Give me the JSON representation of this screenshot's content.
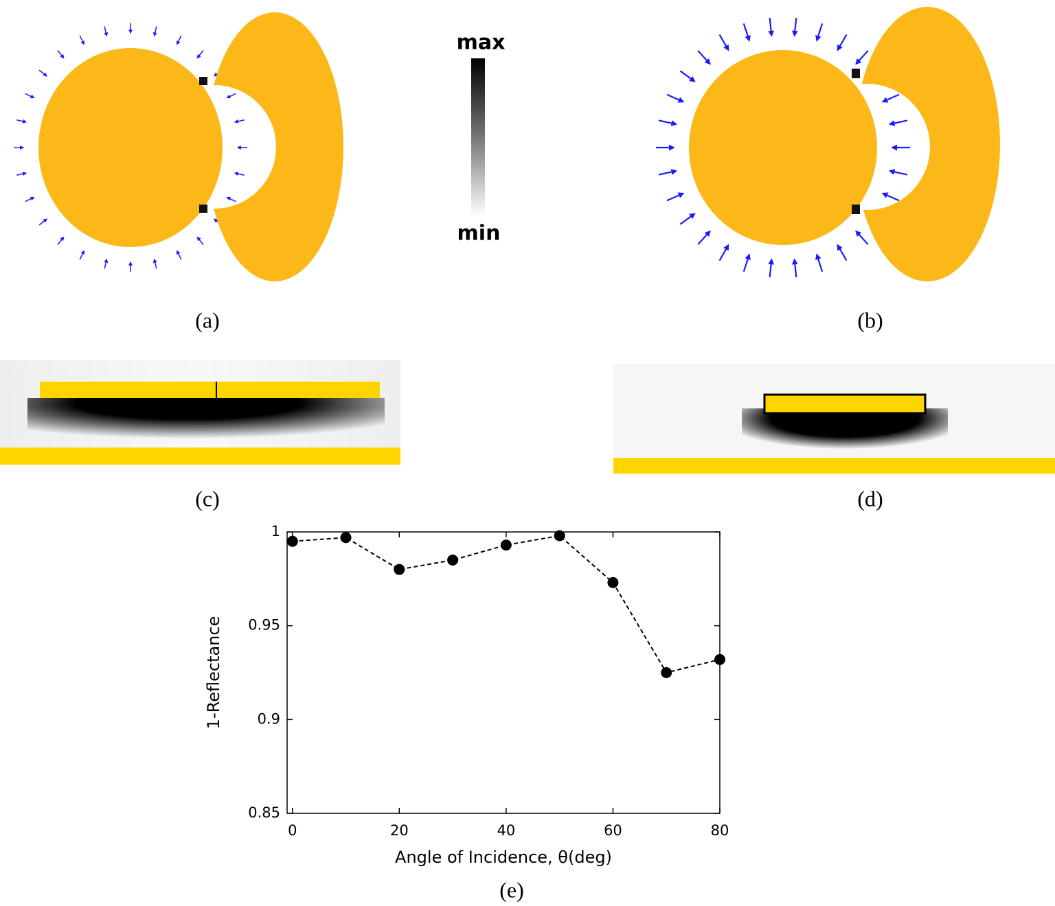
{
  "colorbar": {
    "max_label": "max",
    "min_label": "min"
  },
  "panel_labels": [
    "(a)",
    "(b)",
    "(c)",
    "(d)",
    "(e)"
  ],
  "chart_data": {
    "type": "line",
    "x_label": "Angle of Incidence, θ(deg)",
    "y_label": "1-Reflectance",
    "x": [
      0,
      10,
      20,
      30,
      40,
      50,
      60,
      70,
      80
    ],
    "values": [
      0.995,
      0.997,
      0.98,
      0.985,
      0.993,
      0.998,
      0.973,
      0.925,
      0.932
    ],
    "color": "#000000",
    "line_style": "dashed",
    "marker": "circle",
    "xlim": [
      -1,
      80
    ],
    "xticks": [
      0,
      20,
      40,
      60,
      80
    ],
    "ylim": [
      0.85,
      1
    ],
    "yticks": [
      0.85,
      0.9,
      0.95,
      1
    ]
  }
}
